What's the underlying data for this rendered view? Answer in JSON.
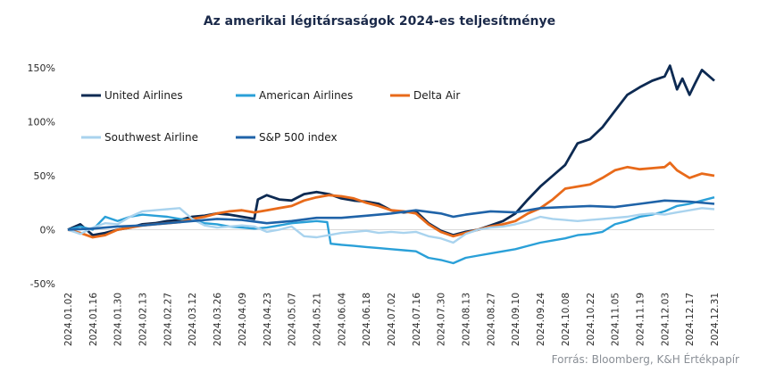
{
  "chart_data": {
    "type": "line",
    "title": "Az amerikai légitársaságok 2024-es teljesítménye",
    "source": "Forrás: Bloomberg,  K&H Értékpapír",
    "ylim": [
      -0.5,
      1.5
    ],
    "yticks": [
      {
        "value": 1.5,
        "label": "150%"
      },
      {
        "value": 1.0,
        "label": "100%"
      },
      {
        "value": 0.5,
        "label": "50%"
      },
      {
        "value": 0.0,
        "label": "0%"
      },
      {
        "value": -0.5,
        "label": "-50%"
      }
    ],
    "xlim": [
      "2024-01-02",
      "2024-12-31"
    ],
    "xticks": [
      "2024.01.02",
      "2024.01.16",
      "2024.01.30",
      "2024.02.13",
      "2024.02.27",
      "2024.03.12",
      "2024.03.26",
      "2024.04.09",
      "2024.04.23",
      "2024.05.07",
      "2024.05.21",
      "2024.06.04",
      "2024.06.18",
      "2024.07.02",
      "2024.07.16",
      "2024.07.30",
      "2024.08.13",
      "2024.08.27",
      "2024.09.10",
      "2024.09.24",
      "2024.10.08",
      "2024.10.22",
      "2024.11.05",
      "2024.11.19",
      "2024.12.03",
      "2024.12.17",
      "2024.12.31"
    ],
    "grid": false,
    "legend_position": "top-left",
    "series": [
      {
        "name": "United Airlines",
        "color": "#0d2a52",
        "width": 2.8,
        "points": [
          [
            "2024-01-02",
            0.0
          ],
          [
            "2024-01-09",
            0.05
          ],
          [
            "2024-01-16",
            -0.05
          ],
          [
            "2024-01-23",
            -0.03
          ],
          [
            "2024-01-30",
            0.0
          ],
          [
            "2024-02-06",
            0.02
          ],
          [
            "2024-02-13",
            0.05
          ],
          [
            "2024-02-20",
            0.06
          ],
          [
            "2024-02-27",
            0.08
          ],
          [
            "2024-03-05",
            0.09
          ],
          [
            "2024-03-12",
            0.12
          ],
          [
            "2024-03-19",
            0.13
          ],
          [
            "2024-03-26",
            0.15
          ],
          [
            "2024-04-02",
            0.14
          ],
          [
            "2024-04-09",
            0.12
          ],
          [
            "2024-04-16",
            0.1
          ],
          [
            "2024-04-18",
            0.28
          ],
          [
            "2024-04-23",
            0.32
          ],
          [
            "2024-04-30",
            0.28
          ],
          [
            "2024-05-07",
            0.27
          ],
          [
            "2024-05-14",
            0.33
          ],
          [
            "2024-05-21",
            0.35
          ],
          [
            "2024-05-28",
            0.33
          ],
          [
            "2024-06-04",
            0.29
          ],
          [
            "2024-06-11",
            0.27
          ],
          [
            "2024-06-18",
            0.26
          ],
          [
            "2024-06-25",
            0.24
          ],
          [
            "2024-07-02",
            0.18
          ],
          [
            "2024-07-09",
            0.16
          ],
          [
            "2024-07-16",
            0.17
          ],
          [
            "2024-07-23",
            0.06
          ],
          [
            "2024-07-30",
            -0.01
          ],
          [
            "2024-08-06",
            -0.05
          ],
          [
            "2024-08-13",
            -0.02
          ],
          [
            "2024-08-20",
            0.0
          ],
          [
            "2024-08-27",
            0.04
          ],
          [
            "2024-09-03",
            0.08
          ],
          [
            "2024-09-10",
            0.15
          ],
          [
            "2024-09-17",
            0.28
          ],
          [
            "2024-09-24",
            0.4
          ],
          [
            "2024-10-01",
            0.5
          ],
          [
            "2024-10-08",
            0.6
          ],
          [
            "2024-10-15",
            0.8
          ],
          [
            "2024-10-22",
            0.84
          ],
          [
            "2024-10-29",
            0.95
          ],
          [
            "2024-11-05",
            1.1
          ],
          [
            "2024-11-12",
            1.25
          ],
          [
            "2024-11-19",
            1.32
          ],
          [
            "2024-11-26",
            1.38
          ],
          [
            "2024-12-03",
            1.42
          ],
          [
            "2024-12-06",
            1.52
          ],
          [
            "2024-12-10",
            1.3
          ],
          [
            "2024-12-13",
            1.4
          ],
          [
            "2024-12-17",
            1.25
          ],
          [
            "2024-12-20",
            1.35
          ],
          [
            "2024-12-24",
            1.48
          ],
          [
            "2024-12-31",
            1.38
          ]
        ]
      },
      {
        "name": "American Airlines",
        "color": "#2aa0d8",
        "width": 2.4,
        "points": [
          [
            "2024-01-02",
            0.0
          ],
          [
            "2024-01-09",
            0.03
          ],
          [
            "2024-01-16",
            0.0
          ],
          [
            "2024-01-23",
            0.12
          ],
          [
            "2024-01-30",
            0.08
          ],
          [
            "2024-02-06",
            0.12
          ],
          [
            "2024-02-13",
            0.14
          ],
          [
            "2024-02-20",
            0.13
          ],
          [
            "2024-02-27",
            0.12
          ],
          [
            "2024-03-05",
            0.1
          ],
          [
            "2024-03-12",
            0.09
          ],
          [
            "2024-03-19",
            0.06
          ],
          [
            "2024-03-26",
            0.05
          ],
          [
            "2024-04-02",
            0.03
          ],
          [
            "2024-04-09",
            0.02
          ],
          [
            "2024-04-16",
            0.01
          ],
          [
            "2024-04-23",
            0.02
          ],
          [
            "2024-04-30",
            0.04
          ],
          [
            "2024-05-07",
            0.06
          ],
          [
            "2024-05-14",
            0.07
          ],
          [
            "2024-05-21",
            0.08
          ],
          [
            "2024-05-27",
            0.07
          ],
          [
            "2024-05-29",
            -0.13
          ],
          [
            "2024-06-04",
            -0.14
          ],
          [
            "2024-06-11",
            -0.15
          ],
          [
            "2024-06-18",
            -0.16
          ],
          [
            "2024-06-25",
            -0.17
          ],
          [
            "2024-07-02",
            -0.18
          ],
          [
            "2024-07-09",
            -0.19
          ],
          [
            "2024-07-16",
            -0.2
          ],
          [
            "2024-07-23",
            -0.26
          ],
          [
            "2024-07-30",
            -0.28
          ],
          [
            "2024-08-06",
            -0.31
          ],
          [
            "2024-08-13",
            -0.26
          ],
          [
            "2024-08-20",
            -0.24
          ],
          [
            "2024-08-27",
            -0.22
          ],
          [
            "2024-09-03",
            -0.2
          ],
          [
            "2024-09-10",
            -0.18
          ],
          [
            "2024-09-17",
            -0.15
          ],
          [
            "2024-09-24",
            -0.12
          ],
          [
            "2024-10-01",
            -0.1
          ],
          [
            "2024-10-08",
            -0.08
          ],
          [
            "2024-10-15",
            -0.05
          ],
          [
            "2024-10-22",
            -0.04
          ],
          [
            "2024-10-29",
            -0.02
          ],
          [
            "2024-11-05",
            0.05
          ],
          [
            "2024-11-12",
            0.08
          ],
          [
            "2024-11-19",
            0.12
          ],
          [
            "2024-11-26",
            0.14
          ],
          [
            "2024-12-03",
            0.17
          ],
          [
            "2024-12-10",
            0.22
          ],
          [
            "2024-12-17",
            0.24
          ],
          [
            "2024-12-24",
            0.27
          ],
          [
            "2024-12-31",
            0.3
          ]
        ]
      },
      {
        "name": "Delta Air",
        "color": "#e86a1a",
        "width": 2.8,
        "points": [
          [
            "2024-01-02",
            0.0
          ],
          [
            "2024-01-09",
            -0.03
          ],
          [
            "2024-01-16",
            -0.07
          ],
          [
            "2024-01-23",
            -0.05
          ],
          [
            "2024-01-30",
            0.0
          ],
          [
            "2024-02-06",
            0.02
          ],
          [
            "2024-02-13",
            0.04
          ],
          [
            "2024-02-20",
            0.05
          ],
          [
            "2024-02-27",
            0.06
          ],
          [
            "2024-03-05",
            0.07
          ],
          [
            "2024-03-12",
            0.1
          ],
          [
            "2024-03-19",
            0.12
          ],
          [
            "2024-03-26",
            0.15
          ],
          [
            "2024-04-02",
            0.17
          ],
          [
            "2024-04-09",
            0.18
          ],
          [
            "2024-04-16",
            0.16
          ],
          [
            "2024-04-23",
            0.18
          ],
          [
            "2024-04-30",
            0.2
          ],
          [
            "2024-05-07",
            0.22
          ],
          [
            "2024-05-14",
            0.27
          ],
          [
            "2024-05-21",
            0.3
          ],
          [
            "2024-05-28",
            0.32
          ],
          [
            "2024-06-04",
            0.31
          ],
          [
            "2024-06-11",
            0.29
          ],
          [
            "2024-06-18",
            0.25
          ],
          [
            "2024-06-25",
            0.22
          ],
          [
            "2024-07-02",
            0.18
          ],
          [
            "2024-07-09",
            0.17
          ],
          [
            "2024-07-16",
            0.15
          ],
          [
            "2024-07-23",
            0.05
          ],
          [
            "2024-07-30",
            -0.02
          ],
          [
            "2024-08-06",
            -0.06
          ],
          [
            "2024-08-13",
            -0.03
          ],
          [
            "2024-08-20",
            0.0
          ],
          [
            "2024-08-27",
            0.03
          ],
          [
            "2024-09-03",
            0.05
          ],
          [
            "2024-09-10",
            0.08
          ],
          [
            "2024-09-17",
            0.15
          ],
          [
            "2024-09-24",
            0.2
          ],
          [
            "2024-10-01",
            0.28
          ],
          [
            "2024-10-08",
            0.38
          ],
          [
            "2024-10-15",
            0.4
          ],
          [
            "2024-10-22",
            0.42
          ],
          [
            "2024-10-29",
            0.48
          ],
          [
            "2024-11-05",
            0.55
          ],
          [
            "2024-11-12",
            0.58
          ],
          [
            "2024-11-19",
            0.56
          ],
          [
            "2024-11-26",
            0.57
          ],
          [
            "2024-12-03",
            0.58
          ],
          [
            "2024-12-06",
            0.62
          ],
          [
            "2024-12-10",
            0.55
          ],
          [
            "2024-12-17",
            0.48
          ],
          [
            "2024-12-24",
            0.52
          ],
          [
            "2024-12-31",
            0.5
          ]
        ]
      },
      {
        "name": "Southwest Airline",
        "color": "#a9d3ee",
        "width": 2.4,
        "points": [
          [
            "2024-01-02",
            0.0
          ],
          [
            "2024-01-09",
            -0.04
          ],
          [
            "2024-01-16",
            0.02
          ],
          [
            "2024-01-23",
            0.06
          ],
          [
            "2024-01-30",
            0.05
          ],
          [
            "2024-02-06",
            0.12
          ],
          [
            "2024-02-13",
            0.17
          ],
          [
            "2024-02-20",
            0.18
          ],
          [
            "2024-02-27",
            0.19
          ],
          [
            "2024-03-05",
            0.2
          ],
          [
            "2024-03-12",
            0.1
          ],
          [
            "2024-03-19",
            0.04
          ],
          [
            "2024-03-26",
            0.02
          ],
          [
            "2024-04-02",
            0.03
          ],
          [
            "2024-04-09",
            0.04
          ],
          [
            "2024-04-16",
            0.03
          ],
          [
            "2024-04-23",
            -0.02
          ],
          [
            "2024-04-30",
            0.0
          ],
          [
            "2024-05-07",
            0.03
          ],
          [
            "2024-05-14",
            -0.06
          ],
          [
            "2024-05-21",
            -0.07
          ],
          [
            "2024-05-28",
            -0.05
          ],
          [
            "2024-06-04",
            -0.03
          ],
          [
            "2024-06-11",
            -0.02
          ],
          [
            "2024-06-18",
            -0.01
          ],
          [
            "2024-06-25",
            -0.03
          ],
          [
            "2024-07-02",
            -0.02
          ],
          [
            "2024-07-09",
            -0.03
          ],
          [
            "2024-07-16",
            -0.02
          ],
          [
            "2024-07-23",
            -0.06
          ],
          [
            "2024-07-30",
            -0.08
          ],
          [
            "2024-08-06",
            -0.12
          ],
          [
            "2024-08-13",
            -0.04
          ],
          [
            "2024-08-20",
            0.0
          ],
          [
            "2024-08-27",
            0.02
          ],
          [
            "2024-09-03",
            0.03
          ],
          [
            "2024-09-10",
            0.05
          ],
          [
            "2024-09-17",
            0.08
          ],
          [
            "2024-09-24",
            0.12
          ],
          [
            "2024-10-01",
            0.1
          ],
          [
            "2024-10-08",
            0.09
          ],
          [
            "2024-10-15",
            0.08
          ],
          [
            "2024-10-22",
            0.09
          ],
          [
            "2024-10-29",
            0.1
          ],
          [
            "2024-11-05",
            0.11
          ],
          [
            "2024-11-12",
            0.12
          ],
          [
            "2024-11-19",
            0.14
          ],
          [
            "2024-11-26",
            0.15
          ],
          [
            "2024-12-03",
            0.14
          ],
          [
            "2024-12-10",
            0.16
          ],
          [
            "2024-12-17",
            0.18
          ],
          [
            "2024-12-24",
            0.2
          ],
          [
            "2024-12-31",
            0.19
          ]
        ]
      },
      {
        "name": "S&P 500 index",
        "color": "#1f63a8",
        "width": 2.6,
        "points": [
          [
            "2024-01-02",
            0.0
          ],
          [
            "2024-01-16",
            0.01
          ],
          [
            "2024-01-30",
            0.03
          ],
          [
            "2024-02-13",
            0.04
          ],
          [
            "2024-02-27",
            0.06
          ],
          [
            "2024-03-12",
            0.08
          ],
          [
            "2024-03-26",
            0.1
          ],
          [
            "2024-04-09",
            0.09
          ],
          [
            "2024-04-23",
            0.06
          ],
          [
            "2024-05-07",
            0.08
          ],
          [
            "2024-05-21",
            0.11
          ],
          [
            "2024-06-04",
            0.11
          ],
          [
            "2024-06-18",
            0.13
          ],
          [
            "2024-07-02",
            0.15
          ],
          [
            "2024-07-16",
            0.18
          ],
          [
            "2024-07-30",
            0.15
          ],
          [
            "2024-08-06",
            0.12
          ],
          [
            "2024-08-13",
            0.14
          ],
          [
            "2024-08-27",
            0.17
          ],
          [
            "2024-09-10",
            0.16
          ],
          [
            "2024-09-24",
            0.2
          ],
          [
            "2024-10-08",
            0.21
          ],
          [
            "2024-10-22",
            0.22
          ],
          [
            "2024-11-05",
            0.21
          ],
          [
            "2024-11-19",
            0.24
          ],
          [
            "2024-12-03",
            0.27
          ],
          [
            "2024-12-17",
            0.26
          ],
          [
            "2024-12-31",
            0.24
          ]
        ]
      }
    ]
  }
}
